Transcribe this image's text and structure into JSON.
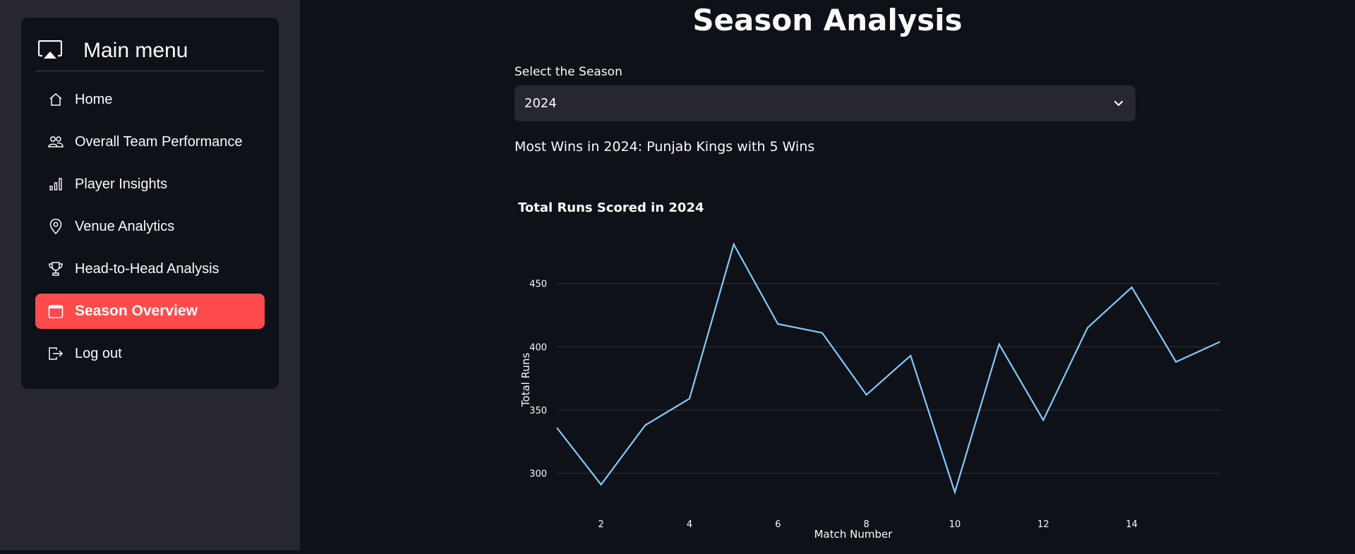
{
  "sidebar": {
    "menu_title": "Main menu",
    "menu_icon": "cast-icon",
    "items": [
      {
        "label": "Home",
        "icon": "house-icon",
        "active": false
      },
      {
        "label": "Overall Team Performance",
        "icon": "people-icon",
        "active": false
      },
      {
        "label": "Player Insights",
        "icon": "bar-chart-icon",
        "active": false
      },
      {
        "label": "Venue Analytics",
        "icon": "geo-pin-icon",
        "active": false
      },
      {
        "label": "Head-to-Head Analysis",
        "icon": "trophy-icon",
        "active": false
      },
      {
        "label": "Season Overview",
        "icon": "calendar-icon",
        "active": true
      },
      {
        "label": "Log out",
        "icon": "box-arrow-right-icon",
        "active": false
      }
    ],
    "active_color": "#ff4b4b"
  },
  "main": {
    "title": "Season Analysis",
    "select_label": "Select the Season",
    "select_value": "2024",
    "wins_text": "Most Wins in 2024: Punjab Kings with 5 Wins"
  },
  "chart_data": {
    "type": "line",
    "title": "Total Runs Scored in 2024",
    "xlabel": "Match Number",
    "ylabel": "Total Runs",
    "x": [
      1,
      2,
      3,
      4,
      5,
      6,
      7,
      8,
      9,
      10,
      11,
      12,
      13,
      14,
      15,
      16
    ],
    "y": [
      336,
      291,
      338,
      359,
      481,
      418,
      411,
      362,
      393,
      285,
      402,
      342,
      415,
      447,
      388,
      404
    ],
    "xlim": [
      1,
      16
    ],
    "ylim": [
      278,
      490
    ],
    "xticks": [
      2,
      4,
      6,
      8,
      10,
      12,
      14
    ],
    "yticks": [
      300,
      350,
      400,
      450
    ],
    "grid": true,
    "line_color": "#83c9ff",
    "grid_color": "#31333f"
  }
}
